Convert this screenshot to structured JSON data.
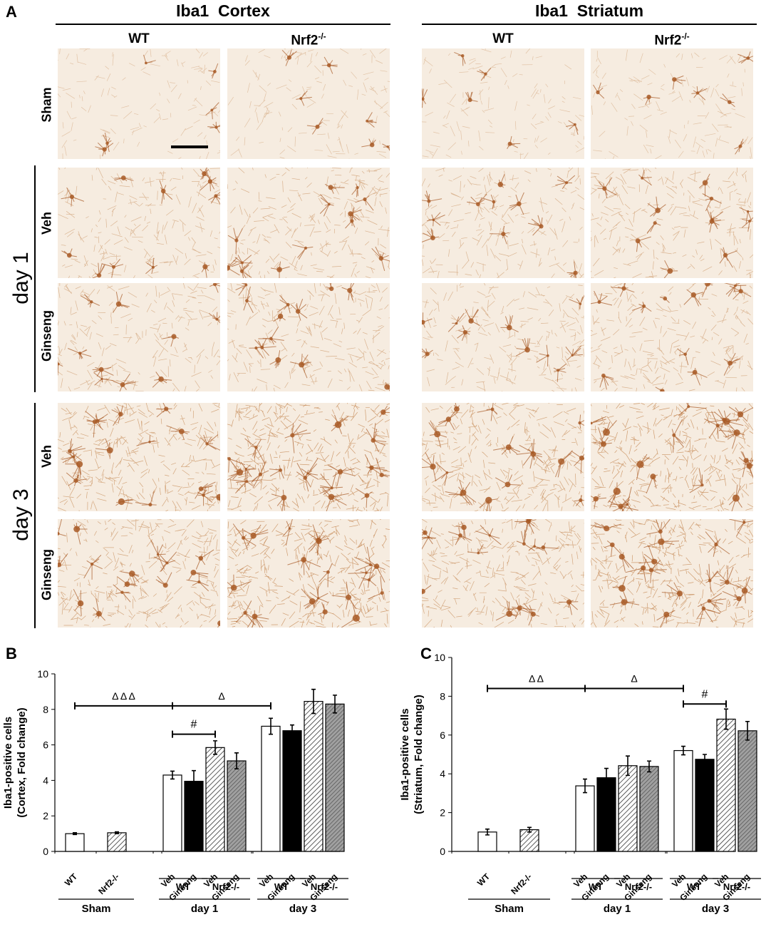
{
  "panel_a": {
    "letter": "A",
    "cortex_title": "Iba1  Cortex",
    "striatum_title": "Iba1  Striatum",
    "col_wt": "WT",
    "col_nrf2_base": "Nrf2",
    "col_nrf2_sup": "-/-",
    "row_sham": "Sham",
    "row_veh": "Veh",
    "row_ginseng": "Ginseng",
    "day1": "day 1",
    "day3": "day 3",
    "stain_colors": {
      "background": "#f6ece0",
      "cell": "#a85a26",
      "fiber": "#c58a55"
    }
  },
  "chart_data": [
    {
      "letter": "B",
      "type": "bar",
      "ylabel_line1": "Iba1-positive cells",
      "ylabel_line2": "(Cortex, Fold change)",
      "ylim": [
        0,
        10
      ],
      "yticks": [
        "0",
        "2",
        "4",
        "6",
        "8",
        "10"
      ],
      "categories": [
        "Sham WT",
        "Sham Nrf2-/-",
        "day 1 WT Veh",
        "day 1 WT Ginseng",
        "day 1 Nrf2-/- Veh",
        "day 1 Nrf2-/- Ginseng",
        "day 3 WT Veh",
        "day 3 WT Ginseng",
        "day 3 Nrf2-/- Veh",
        "day 3 Nrf2-/- Ginseng"
      ],
      "values": [
        1.0,
        1.05,
        4.3,
        3.95,
        5.85,
        5.1,
        7.05,
        6.8,
        8.45,
        8.3
      ],
      "errors": [
        0.05,
        0.05,
        0.22,
        0.6,
        0.38,
        0.45,
        0.45,
        0.32,
        0.68,
        0.5
      ],
      "fills": [
        "white",
        "hatch",
        "white",
        "black",
        "hatch",
        "gray",
        "white",
        "black",
        "hatch",
        "gray"
      ],
      "annotations": [
        {
          "text": "Δ Δ Δ",
          "from": 0,
          "to": 2,
          "y": 8.2
        },
        {
          "text": "Δ",
          "from": 2,
          "to": 6,
          "y": 8.2
        },
        {
          "text": "#",
          "from": 2,
          "to": 4,
          "y": 6.6
        }
      ],
      "tick_sham_wt": "WT",
      "tick_sham_nrf2": "Nrf2-/-",
      "tick_veh": "Veh",
      "tick_ginseng": "Ginseng",
      "group_wt": "WT",
      "group_nrf2": "Nrf2-/-",
      "group_sham": "Sham",
      "group_day1": "day 1",
      "group_day3": "day 3"
    },
    {
      "letter": "C",
      "type": "bar",
      "ylabel_line1": "Iba1-positive cells",
      "ylabel_line2": "(Striatum, Fold change)",
      "ylim": [
        0,
        10
      ],
      "yticks": [
        "0",
        "2",
        "4",
        "6",
        "8",
        "10"
      ],
      "categories": [
        "Sham WT",
        "Sham Nrf2-/-",
        "day 1 WT Veh",
        "day 1 WT Ginseng",
        "day 1 Nrf2-/- Veh",
        "day 1 Nrf2-/- Ginseng",
        "day 3 WT Veh",
        "day 3 WT Ginseng",
        "day 3 Nrf2-/- Veh",
        "day 3 Nrf2-/- Ginseng"
      ],
      "values": [
        1.0,
        1.12,
        3.38,
        3.8,
        4.42,
        4.38,
        5.2,
        4.75,
        6.82,
        6.22
      ],
      "errors": [
        0.15,
        0.12,
        0.35,
        0.48,
        0.5,
        0.28,
        0.22,
        0.25,
        0.52,
        0.48
      ],
      "fills": [
        "white",
        "hatch",
        "white",
        "black",
        "hatch",
        "gray",
        "white",
        "black",
        "hatch",
        "gray"
      ],
      "annotations": [
        {
          "text": "Δ Δ",
          "from": 0,
          "to": 2,
          "y": 8.4
        },
        {
          "text": "Δ",
          "from": 2,
          "to": 6,
          "y": 8.4
        },
        {
          "text": "#",
          "from": 6,
          "to": 8,
          "y": 7.6
        }
      ],
      "tick_sham_wt": "WT",
      "tick_sham_nrf2": "Nrf2-/-",
      "tick_veh": "Veh",
      "tick_ginseng": "Ginseng",
      "group_wt": "WT",
      "group_nrf2": "Nrf2-/-",
      "group_sham": "Sham",
      "group_day1": "day 1",
      "group_day3": "day 3"
    }
  ]
}
